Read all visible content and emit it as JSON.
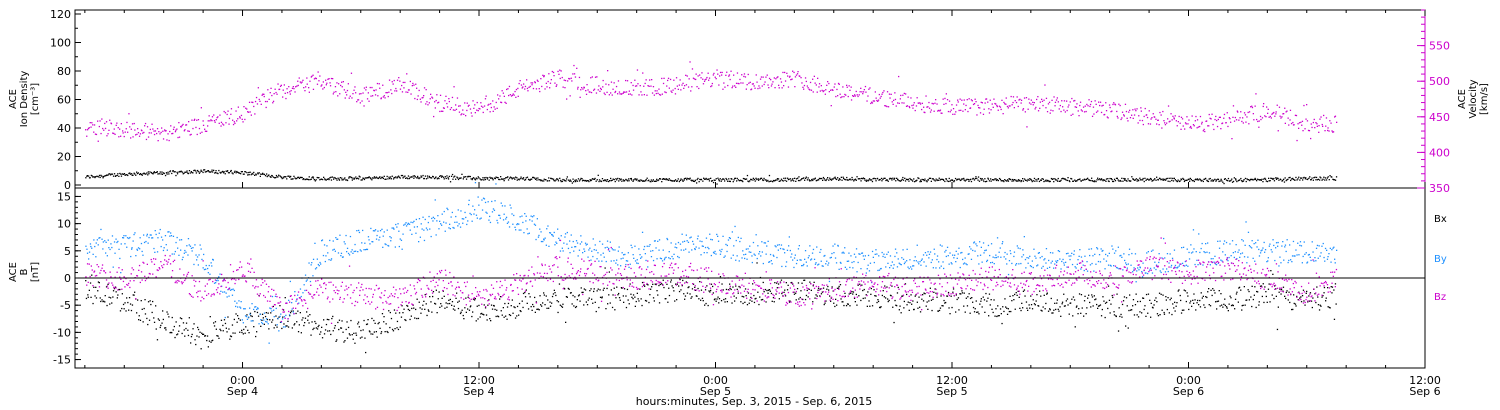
{
  "colors": {
    "black": "#000000",
    "magenta": "#cc00cc",
    "blue": "#1e90ff",
    "frame": "#000000"
  },
  "time_axis": {
    "labels": [
      {
        "time": "0:00",
        "date": "Sep 4"
      },
      {
        "time": "12:00",
        "date": "Sep 4"
      },
      {
        "time": "0:00",
        "date": "Sep 5"
      },
      {
        "time": "12:00",
        "date": "Sep 5"
      },
      {
        "time": "0:00",
        "date": "Sep 6"
      },
      {
        "time": "12:00",
        "date": "Sep 6"
      }
    ],
    "label_hours": [
      24,
      36,
      48,
      60,
      72,
      84
    ],
    "title": "hours:minutes, Sep.  3, 2015 - Sep.  6, 2015",
    "xlim_hours": [
      15.5,
      84
    ],
    "data_end_hour": 79.5
  },
  "chart_data": [
    {
      "type": "scatter",
      "panel": "top",
      "ylabel_left": [
        "ACE",
        "Ion Density",
        "[cm⁻³]"
      ],
      "ylabel_right": [
        "ACE",
        "Velocity",
        "[km/s]"
      ],
      "ylim_left": [
        0,
        120
      ],
      "yticks_left": [
        "0",
        "20",
        "40",
        "60",
        "80",
        "100",
        "120"
      ],
      "ylim_right": [
        350,
        600
      ],
      "yticks_right": [
        "350",
        "400",
        "450",
        "500",
        "550"
      ],
      "x": [
        16,
        18,
        20,
        22,
        24,
        26,
        28,
        30,
        32,
        34,
        36,
        38,
        40,
        42,
        44,
        46,
        48,
        50,
        52,
        54,
        56,
        58,
        60,
        62,
        64,
        66,
        68,
        70,
        72,
        74,
        76,
        78,
        79.5
      ],
      "series": [
        {
          "axis": "left",
          "color": "black",
          "values": [
            6,
            8,
            9,
            10,
            9,
            6,
            5,
            5,
            6,
            6,
            5,
            5,
            4,
            4,
            4,
            4,
            4,
            4,
            4,
            5,
            4,
            4,
            4,
            4,
            4,
            4,
            4,
            4,
            4,
            4,
            4,
            5,
            5
          ]
        },
        {
          "axis": "right",
          "color": "magenta",
          "values": [
            440,
            433,
            428,
            440,
            455,
            490,
            500,
            480,
            495,
            470,
            460,
            490,
            505,
            495,
            490,
            495,
            505,
            500,
            505,
            490,
            480,
            470,
            465,
            465,
            470,
            465,
            460,
            450,
            440,
            445,
            460,
            440,
            440
          ]
        }
      ]
    },
    {
      "type": "scatter",
      "panel": "bottom",
      "ylabel_left": [
        "ACE",
        "B",
        "[nT]"
      ],
      "ylim_left": [
        -16,
        16
      ],
      "yticks_left": [
        "-15",
        "-10",
        "-5",
        "0",
        "5",
        "10",
        "15"
      ],
      "legend": [
        "Bx",
        "By",
        "Bz"
      ],
      "x": [
        16,
        18,
        20,
        22,
        24,
        26,
        28,
        30,
        32,
        34,
        36,
        38,
        40,
        42,
        44,
        46,
        48,
        50,
        52,
        54,
        56,
        58,
        60,
        62,
        64,
        66,
        68,
        70,
        72,
        74,
        76,
        78,
        79.5
      ],
      "series": [
        {
          "name": "Bx",
          "color": "black",
          "values": [
            -2,
            -4,
            -8,
            -11,
            -8,
            -7,
            -9,
            -10,
            -7,
            -4,
            -6,
            -5,
            -3,
            -4,
            -3,
            -2,
            -3,
            -3,
            -2,
            -3,
            -3,
            -4,
            -4,
            -5,
            -4,
            -5,
            -5,
            -5,
            -4,
            -4,
            -3,
            -4,
            -3
          ]
        },
        {
          "name": "By",
          "color": "blue",
          "values": [
            5,
            6,
            7,
            4,
            -6,
            -8,
            5,
            7,
            8,
            10,
            13,
            11,
            7,
            5,
            4,
            6,
            6,
            5,
            4,
            4,
            3,
            4,
            4,
            5,
            4,
            3,
            4,
            3,
            4,
            5,
            5,
            5,
            5
          ]
        },
        {
          "name": "Bz",
          "color": "magenta",
          "values": [
            1,
            0,
            3,
            -3,
            2,
            -6,
            -2,
            -3,
            -4,
            0,
            -4,
            -1,
            2,
            1,
            0,
            1,
            -1,
            -2,
            -3,
            -2,
            -1,
            -2,
            -1,
            0,
            -1,
            1,
            0,
            2,
            1,
            2,
            0,
            -3,
            0
          ]
        }
      ]
    }
  ]
}
